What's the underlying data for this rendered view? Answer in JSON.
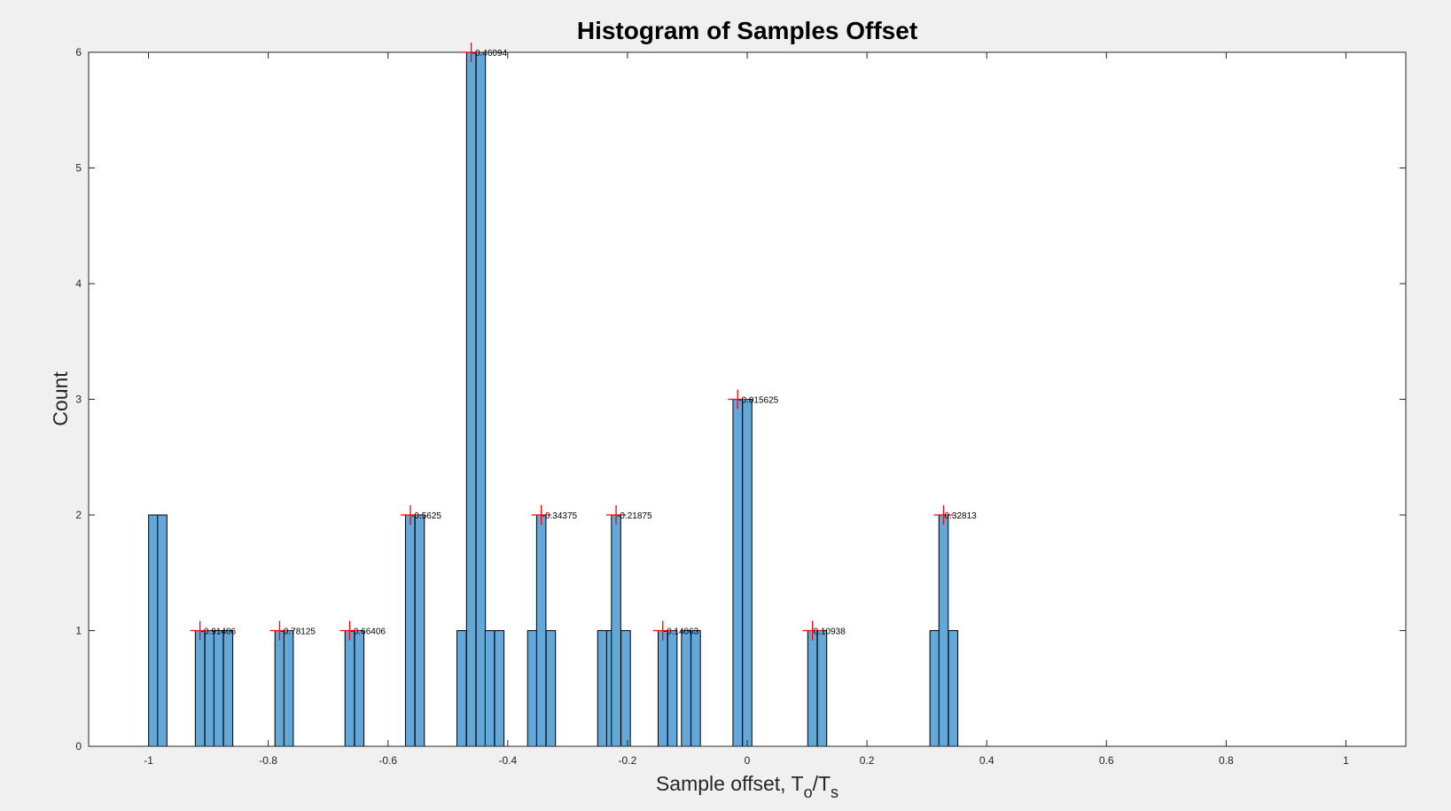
{
  "colors": {
    "figure_bg": "#f0f0f0",
    "axes_bg": "#ffffff",
    "bar_fill": "#64a8d9",
    "bar_edge": "#000000",
    "marker": "#ff0000",
    "axis": "#262626"
  },
  "chart_data": {
    "type": "bar",
    "title": "Histogram of Samples Offset",
    "xlabel": {
      "main": "Sample offset, T",
      "sub1": "o",
      "mid": "/T",
      "sub2": "s"
    },
    "ylabel": "Count",
    "xlim": [
      -1.1,
      1.1
    ],
    "ylim": [
      0,
      6
    ],
    "bin_width": 0.015625,
    "xticks": [
      -1,
      -0.8,
      -0.6,
      -0.4,
      -0.2,
      0,
      0.2,
      0.4,
      0.6,
      0.8,
      1
    ],
    "xtick_labels": [
      "-1",
      "-0.8",
      "-0.6",
      "-0.4",
      "-0.2",
      "0",
      "0.2",
      "0.4",
      "0.6",
      "0.8",
      "1"
    ],
    "yticks": [
      0,
      1,
      2,
      3,
      4,
      5,
      6
    ],
    "ytick_labels": [
      "0",
      "1",
      "2",
      "3",
      "4",
      "5",
      "6"
    ],
    "grid": false,
    "bins": [
      {
        "x": -0.992,
        "count": 2
      },
      {
        "x": -0.977,
        "count": 2
      },
      {
        "x": -0.914,
        "count": 1
      },
      {
        "x": -0.898,
        "count": 1
      },
      {
        "x": -0.883,
        "count": 1
      },
      {
        "x": -0.867,
        "count": 1
      },
      {
        "x": -0.781,
        "count": 1
      },
      {
        "x": -0.766,
        "count": 1
      },
      {
        "x": -0.664,
        "count": 1
      },
      {
        "x": -0.648,
        "count": 1
      },
      {
        "x": -0.563,
        "count": 2
      },
      {
        "x": -0.547,
        "count": 2
      },
      {
        "x": -0.477,
        "count": 1
      },
      {
        "x": -0.461,
        "count": 6
      },
      {
        "x": -0.445,
        "count": 6
      },
      {
        "x": -0.43,
        "count": 1
      },
      {
        "x": -0.414,
        "count": 1
      },
      {
        "x": -0.359,
        "count": 1
      },
      {
        "x": -0.344,
        "count": 2
      },
      {
        "x": -0.328,
        "count": 1
      },
      {
        "x": -0.242,
        "count": 1
      },
      {
        "x": -0.227,
        "count": 1
      },
      {
        "x": -0.219,
        "count": 2
      },
      {
        "x": -0.203,
        "count": 1
      },
      {
        "x": -0.141,
        "count": 1
      },
      {
        "x": -0.125,
        "count": 1
      },
      {
        "x": -0.102,
        "count": 1
      },
      {
        "x": -0.086,
        "count": 1
      },
      {
        "x": -0.016,
        "count": 3
      },
      {
        "x": 0.0,
        "count": 3
      },
      {
        "x": 0.109,
        "count": 1
      },
      {
        "x": 0.125,
        "count": 1
      },
      {
        "x": 0.313,
        "count": 1
      },
      {
        "x": 0.328,
        "count": 2
      },
      {
        "x": 0.344,
        "count": 1
      }
    ],
    "peaks": [
      {
        "x": -0.914,
        "y": 1,
        "label": "-0.91406"
      },
      {
        "x": -0.781,
        "y": 1,
        "label": "-0.78125"
      },
      {
        "x": -0.664,
        "y": 1,
        "label": "-0.66406"
      },
      {
        "x": -0.5625,
        "y": 2,
        "label": "-0.5625"
      },
      {
        "x": -0.461,
        "y": 6,
        "label": "-0.46094"
      },
      {
        "x": -0.344,
        "y": 2,
        "label": "-0.34375"
      },
      {
        "x": -0.219,
        "y": 2,
        "label": "-0.21875"
      },
      {
        "x": -0.141,
        "y": 1,
        "label": "-0.14063"
      },
      {
        "x": -0.016,
        "y": 3,
        "label": "-0.015625"
      },
      {
        "x": 0.109,
        "y": 1,
        "label": "0.10938"
      },
      {
        "x": 0.328,
        "y": 2,
        "label": "0.32813"
      }
    ]
  }
}
